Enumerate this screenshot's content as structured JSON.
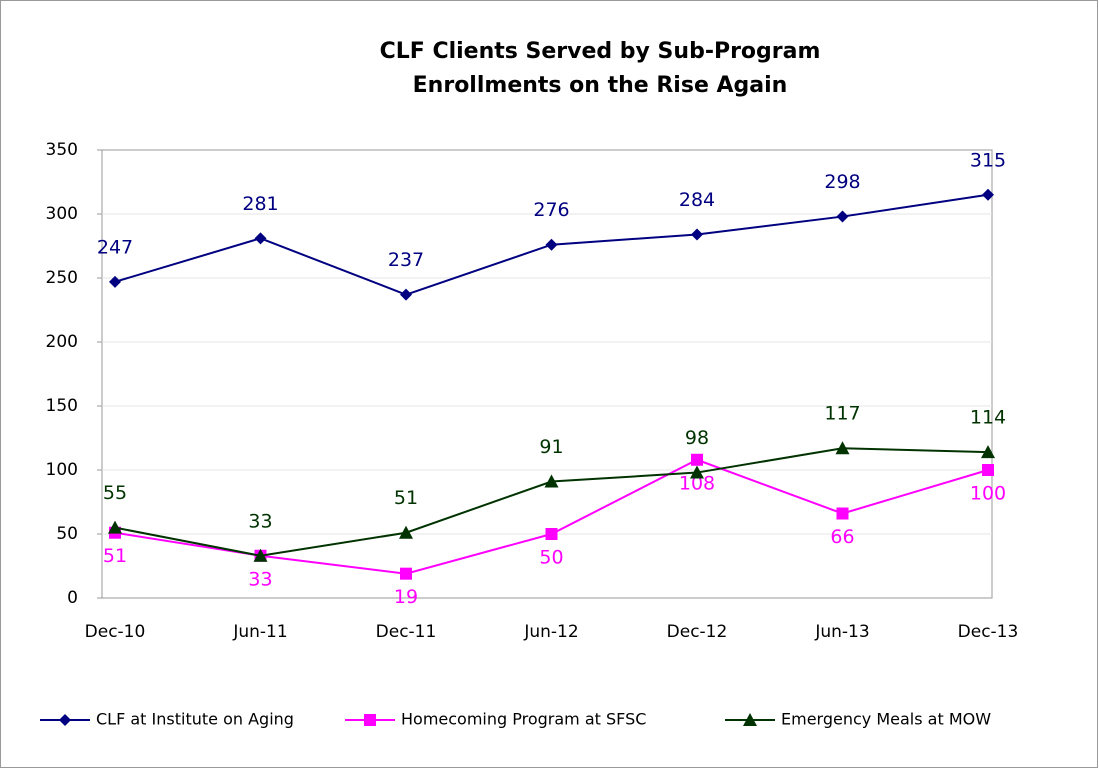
{
  "chart_data": {
    "type": "line",
    "title": "CLF Clients Served by Sub-Program",
    "subtitle": "Enrollments on the Rise Again",
    "categories": [
      "Dec-10",
      "Jun-11",
      "Dec-11",
      "Jun-12",
      "Dec-12",
      "Jun-13",
      "Dec-13"
    ],
    "series": [
      {
        "name": "CLF at Institute on Aging",
        "color": "#000080",
        "marker": "diamond",
        "label_position": "above",
        "values": [
          247,
          281,
          237,
          276,
          284,
          298,
          315
        ]
      },
      {
        "name": "Homecoming Program at SFSC",
        "color": "#ff00ff",
        "marker": "square",
        "label_position": "below",
        "values": [
          51,
          33,
          19,
          50,
          108,
          66,
          100
        ]
      },
      {
        "name": "Emergency Meals at MOW",
        "color": "#003300",
        "marker": "triangle",
        "label_position": "above",
        "values": [
          55,
          33,
          51,
          91,
          98,
          117,
          114
        ]
      }
    ],
    "ylim": [
      0,
      350
    ],
    "yticks": [
      0,
      50,
      100,
      150,
      200,
      250,
      300,
      350
    ],
    "grid": true,
    "legend": "bottom"
  }
}
